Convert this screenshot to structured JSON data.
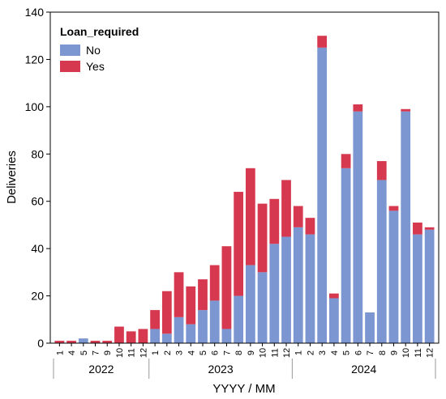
{
  "chart_data": {
    "type": "bar",
    "stacked": true,
    "title": "",
    "xlabel": "YYYY / MM",
    "ylabel": "Deliveries",
    "ylim": [
      0,
      140
    ],
    "yticks": [
      0,
      20,
      40,
      60,
      80,
      100,
      120,
      140
    ],
    "legend": {
      "title": "Loan_required",
      "placement": "top-left"
    },
    "categories": [
      "2022-01",
      "2022-04",
      "2022-05",
      "2022-07",
      "2022-09",
      "2022-10",
      "2022-11",
      "2022-12",
      "2023-01",
      "2023-02",
      "2023-03",
      "2023-04",
      "2023-05",
      "2023-06",
      "2023-07",
      "2023-08",
      "2023-09",
      "2023-10",
      "2023-11",
      "2023-12",
      "2024-01",
      "2024-02",
      "2024-03",
      "2024-04",
      "2024-05",
      "2024-06",
      "2024-07",
      "2024-08",
      "2024-09",
      "2024-10",
      "2024-11",
      "2024-12"
    ],
    "month_labels": [
      "1",
      "4",
      "5",
      "7",
      "9",
      "10",
      "11",
      "12",
      "1",
      "2",
      "3",
      "4",
      "5",
      "6",
      "7",
      "8",
      "9",
      "10",
      "11",
      "12",
      "1",
      "2",
      "3",
      "4",
      "5",
      "6",
      "7",
      "8",
      "9",
      "10",
      "11",
      "12"
    ],
    "year_groups": [
      {
        "label": "2022",
        "count": 8
      },
      {
        "label": "2023",
        "count": 12
      },
      {
        "label": "2024",
        "count": 12
      }
    ],
    "series": [
      {
        "name": "No",
        "color": "#7b96d0",
        "values": [
          0,
          0,
          2,
          0,
          0,
          0,
          0,
          0,
          6,
          4,
          11,
          8,
          14,
          18,
          6,
          20,
          33,
          30,
          42,
          45,
          49,
          46,
          125,
          19,
          74,
          98,
          13,
          69,
          56,
          98,
          46,
          48
        ]
      },
      {
        "name": "Yes",
        "color": "#d6394f",
        "values": [
          1,
          1,
          0,
          1,
          1,
          7,
          5,
          6,
          8,
          18,
          19,
          16,
          13,
          15,
          35,
          44,
          41,
          29,
          19,
          24,
          9,
          7,
          5,
          2,
          6,
          3,
          0,
          8,
          2,
          1,
          5,
          1
        ]
      }
    ]
  }
}
